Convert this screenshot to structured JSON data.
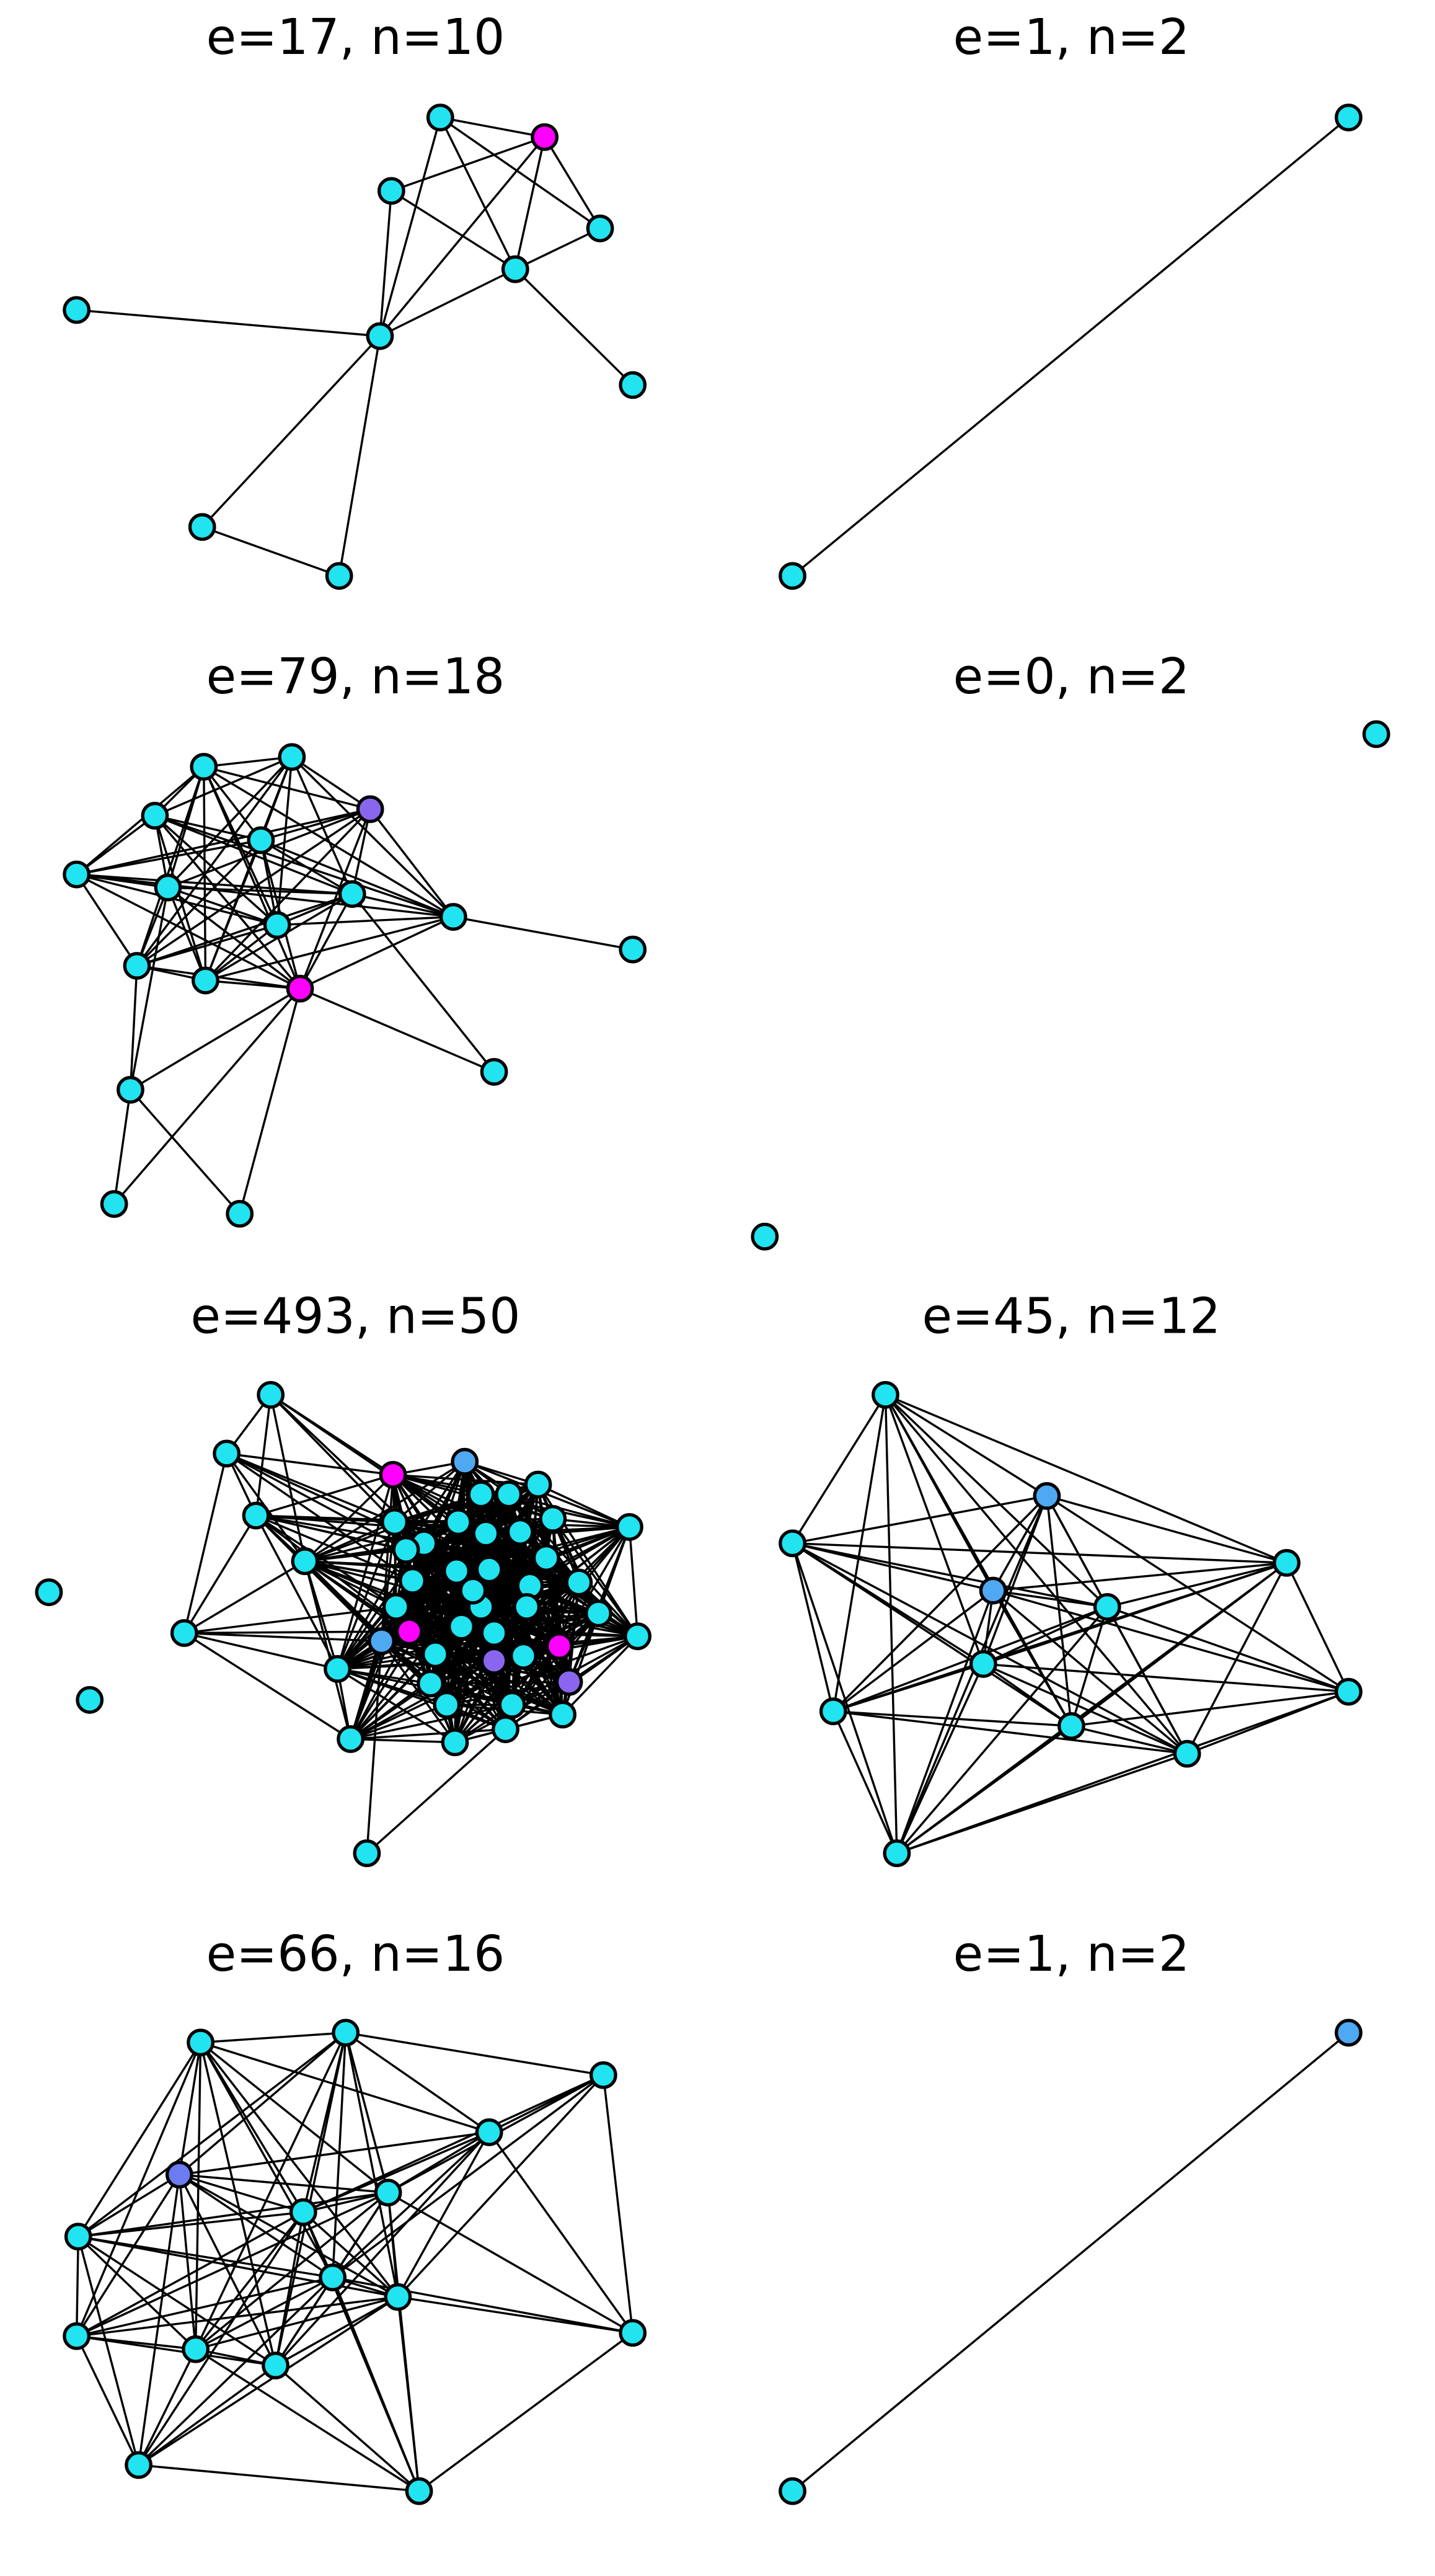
{
  "panels": [
    {
      "title": "e=17, n=10"
    },
    {
      "title": "e=1, n=2"
    },
    {
      "title": "e=79, n=18"
    },
    {
      "title": "e=0, n=2"
    },
    {
      "title": "e=493, n=50"
    },
    {
      "title": "e=45, n=12"
    },
    {
      "title": "e=66, n=16"
    },
    {
      "title": "e=1, n=2"
    }
  ]
}
